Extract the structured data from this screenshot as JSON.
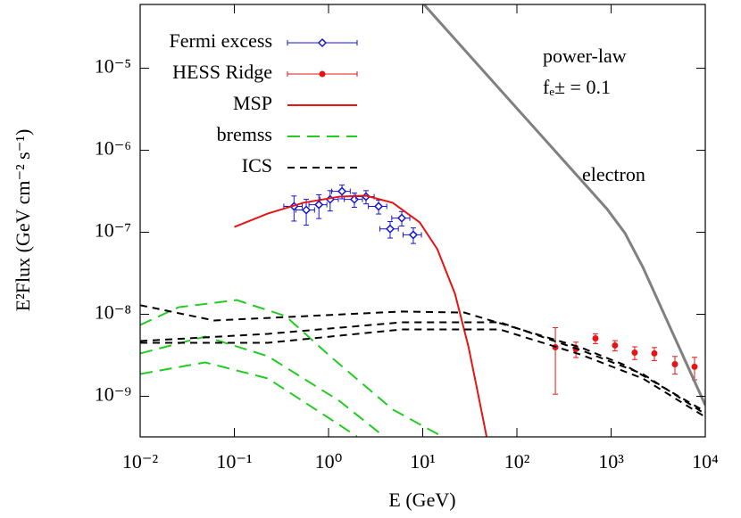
{
  "chart_data": {
    "type": "line",
    "xlabel": "E (GeV)",
    "ylabel": "E²Flux (GeV cm⁻² s⁻¹)",
    "xscale": "log",
    "yscale": "log",
    "xlim": [
      0.01,
      10000
    ],
    "ylim": [
      3.2e-10,
      6e-05
    ],
    "xticks": [
      {
        "value": 0.01,
        "label": "10⁻²"
      },
      {
        "value": 0.1,
        "label": "10⁻¹"
      },
      {
        "value": 1,
        "label": "10⁰"
      },
      {
        "value": 10,
        "label": "10¹"
      },
      {
        "value": 100,
        "label": "10²"
      },
      {
        "value": 1000,
        "label": "10³"
      },
      {
        "value": 10000,
        "label": "10⁴"
      }
    ],
    "yticks": [
      {
        "value": 1e-09,
        "label": "10⁻⁹"
      },
      {
        "value": 1e-08,
        "label": "10⁻⁸"
      },
      {
        "value": 1e-07,
        "label": "10⁻⁷"
      },
      {
        "value": 1e-06,
        "label": "10⁻⁶"
      },
      {
        "value": 1e-05,
        "label": "10⁻⁵"
      }
    ],
    "legend": "upper left",
    "annotations": [
      "power-law",
      "fₑ± = 0.1"
    ],
    "series": [
      {
        "name": "Fermi excess",
        "color": "#1515d0",
        "marker": "diamond",
        "x": [
          0.43,
          0.58,
          0.79,
          1.04,
          1.39,
          1.88,
          2.5,
          3.4,
          4.51,
          5.99,
          7.94
        ],
        "values": [
          2.07e-07,
          1.87e-07,
          2.17e-07,
          2.52e-07,
          3.16e-07,
          2.52e-07,
          2.72e-07,
          2.07e-07,
          1.1e-07,
          1.49e-07,
          9.3e-08
        ],
        "xerr": [
          0.095,
          0.13,
          0.17,
          0.23,
          0.31,
          0.41,
          0.55,
          0.75,
          1.0,
          1.3,
          1.75
        ],
        "yerr": [
          7e-08,
          6.5e-08,
          7e-08,
          7e-08,
          6e-08,
          5e-08,
          5e-08,
          4e-08,
          2.5e-08,
          3e-08,
          2e-08
        ]
      },
      {
        "name": "HESS Ridge",
        "color": "#e51515",
        "marker": "circle",
        "x": [
          256,
          423,
          682,
          1100,
          1780,
          2880,
          4760,
          7690
        ],
        "values": [
          3.96e-09,
          3.77e-09,
          5.09e-09,
          4.17e-09,
          3.41e-09,
          3.33e-09,
          2.46e-09,
          2.29e-09
        ],
        "yerr": [
          2.9e-09,
          8e-10,
          7e-10,
          6e-10,
          6e-10,
          6e-10,
          6e-10,
          7e-10
        ]
      },
      {
        "name": "MSP",
        "color": "#e51515",
        "style": "solid",
        "lines": [
          {
            "x": [
              0.1,
              0.226,
              0.54,
              1.3,
              2.5,
              4.8,
              9.3,
              14.3,
              22,
              30.7,
              38.3,
              47.6
            ],
            "values": [
              1.16e-07,
              1.69e-07,
              2.29e-07,
              2.72e-07,
              2.79e-07,
              2.29e-07,
              1.32e-07,
              6.2e-08,
              1.78e-08,
              3.96e-09,
              1.13e-09,
              3.24e-10
            ]
          }
        ]
      },
      {
        "name": "bremss",
        "color": "#22cc22",
        "style": "longdash",
        "lines": [
          {
            "x": [
              0.01,
              0.0256,
              0.106,
              0.35,
              1.04,
              4.8,
              16.0
            ],
            "values": [
              7.4e-09,
              1.22e-08,
              1.49e-08,
              9.5e-09,
              3.08e-09,
              6.9e-10,
              3.24e-10
            ]
          },
          {
            "x": [
              0.01,
              0.049,
              0.227,
              1.3,
              3.87
            ],
            "values": [
              3.33e-09,
              5.35e-09,
              3.08e-09,
              8.8e-10,
              3.24e-10
            ]
          },
          {
            "x": [
              0.01,
              0.049,
              0.227,
              1.04,
              2.0
            ],
            "values": [
              1.87e-09,
              2.59e-09,
              1.65e-09,
              5.3e-10,
              3.24e-10
            ]
          }
        ]
      },
      {
        "name": "ICS",
        "color": "#000000",
        "style": "dash",
        "lines": [
          {
            "x": [
              0.01,
              0.061,
              5.98,
              27.6,
              471,
              1400,
              10000
            ],
            "values": [
              1.29e-08,
              8.4e-09,
              1.08e-08,
              1.05e-08,
              3.96e-09,
              2.4e-09,
              6.5e-10
            ]
          },
          {
            "x": [
              0.01,
              0.227,
              5.98,
              66,
              471,
              2170,
              10000
            ],
            "values": [
              4.72e-09,
              5.77e-09,
              7.98e-09,
              7.98e-09,
              3.67e-09,
              1.87e-09,
              6.07e-10
            ]
          },
          {
            "x": [
              0.01,
              0.227,
              5.98,
              66,
              471,
              2170,
              10000
            ],
            "values": [
              4.49e-09,
              4.49e-09,
              6.53e-09,
              6.53e-09,
              3.24e-09,
              1.65e-09,
              5.6e-10
            ]
          }
        ]
      },
      {
        "name": "electron",
        "color": "#808080",
        "style": "solid",
        "in_legend": false,
        "lines": [
          {
            "x": [
              10.3,
              102,
              906,
              1400,
              2170,
              10000
            ],
            "values": [
              6e-05,
              3.16e-06,
              1.92e-07,
              9.8e-08,
              3.77e-08,
              7.8e-10
            ]
          }
        ]
      }
    ]
  }
}
